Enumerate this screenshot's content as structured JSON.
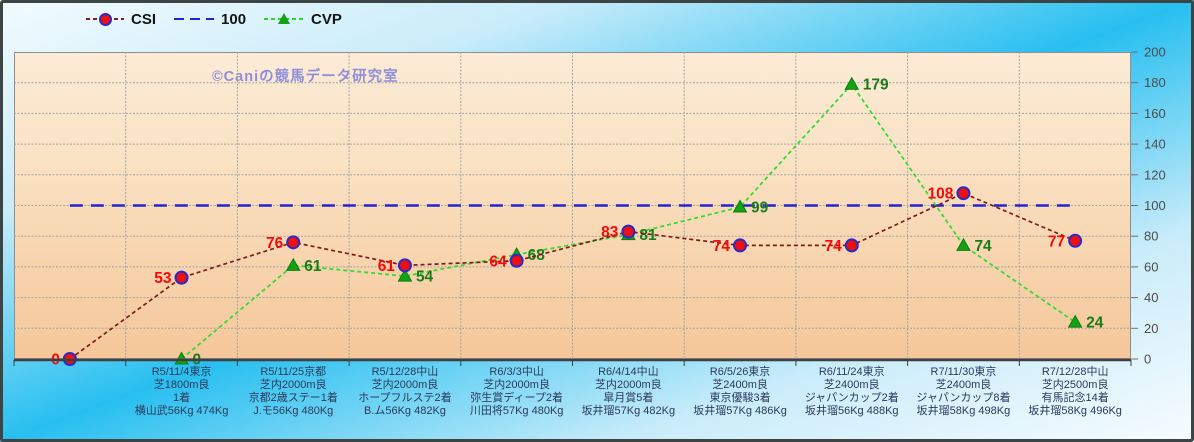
{
  "watermark": "©Caniの競馬データ研究室",
  "legend": {
    "items": [
      {
        "label": "CSI"
      },
      {
        "label": "100"
      },
      {
        "label": "CVP"
      }
    ]
  },
  "chart_data": {
    "type": "line",
    "title": "",
    "xlabel": "",
    "ylabel": "",
    "ylim": [
      0,
      200
    ],
    "ytick_step": 20,
    "grid": true,
    "legend_position": "top-left",
    "y_axis_side": "right",
    "categories": [
      [],
      [
        "R5/11/4東京",
        "芝1800m良",
        "1着",
        "横山武56Kg 474Kg"
      ],
      [
        "R5/11/25京都",
        "芝内2000m良",
        "京都2歳ステー1着",
        "J.モ56Kg 480Kg"
      ],
      [
        "R5/12/28中山",
        "芝内2000m良",
        "ホープフルステ2着",
        "B.ム56Kg 482Kg"
      ],
      [
        "R6/3/3中山",
        "芝内2000m良",
        "弥生賞ディープ2着",
        "川田将57Kg 480Kg"
      ],
      [
        "R6/4/14中山",
        "芝内2000m良",
        "皐月賞5着",
        "坂井瑠57Kg 482Kg"
      ],
      [
        "R6/5/26東京",
        "芝2400m良",
        "東京優駿3着",
        "坂井瑠57Kg 486Kg"
      ],
      [
        "R6/11/24東京",
        "芝2400m良",
        "ジャパンカップ2着",
        "坂井瑠56Kg 488Kg"
      ],
      [
        "R7/11/30東京",
        "芝2400m良",
        "ジャパンカップ8着",
        "坂井瑠58Kg 498Kg"
      ],
      [
        "R7/12/28中山",
        "芝内2500m良",
        "有馬記念14着",
        "坂井瑠58Kg 496Kg"
      ]
    ],
    "series": [
      {
        "name": "100",
        "marker": "none",
        "line_color": "#2424CE",
        "line_dash": "13 8",
        "line_width": 2.4,
        "label_side": "none",
        "values": [
          100,
          100,
          100,
          100,
          100,
          100,
          100,
          100,
          100,
          100
        ]
      },
      {
        "name": "CVP",
        "marker": "triangle",
        "marker_fill": "#13A213",
        "marker_edge": "#0C7C0C",
        "line_color": "#35DB35",
        "line_dash": "4 3",
        "line_width": 1.8,
        "label_color": "#1B7B1B",
        "label_side": "right",
        "values": [
          null,
          0,
          61,
          54,
          68,
          81,
          99,
          179,
          74,
          24
        ]
      },
      {
        "name": "CSI",
        "marker": "circle",
        "marker_fill": "#EE1010",
        "marker_edge": "#2A2AC8",
        "line_color": "#7E1C1C",
        "line_dash": "4 3",
        "line_width": 1.7,
        "label_color": "#F60A0A",
        "label_side": "left",
        "values": [
          0,
          53,
          76,
          61,
          64,
          83,
          74,
          74,
          108,
          77
        ]
      }
    ],
    "axis_colors": {
      "tick_label": "#4D4D4D",
      "x_label_text": "#2B3A5C",
      "gridline": "#A7A39D",
      "axis_line": "#3F3F3F"
    }
  }
}
